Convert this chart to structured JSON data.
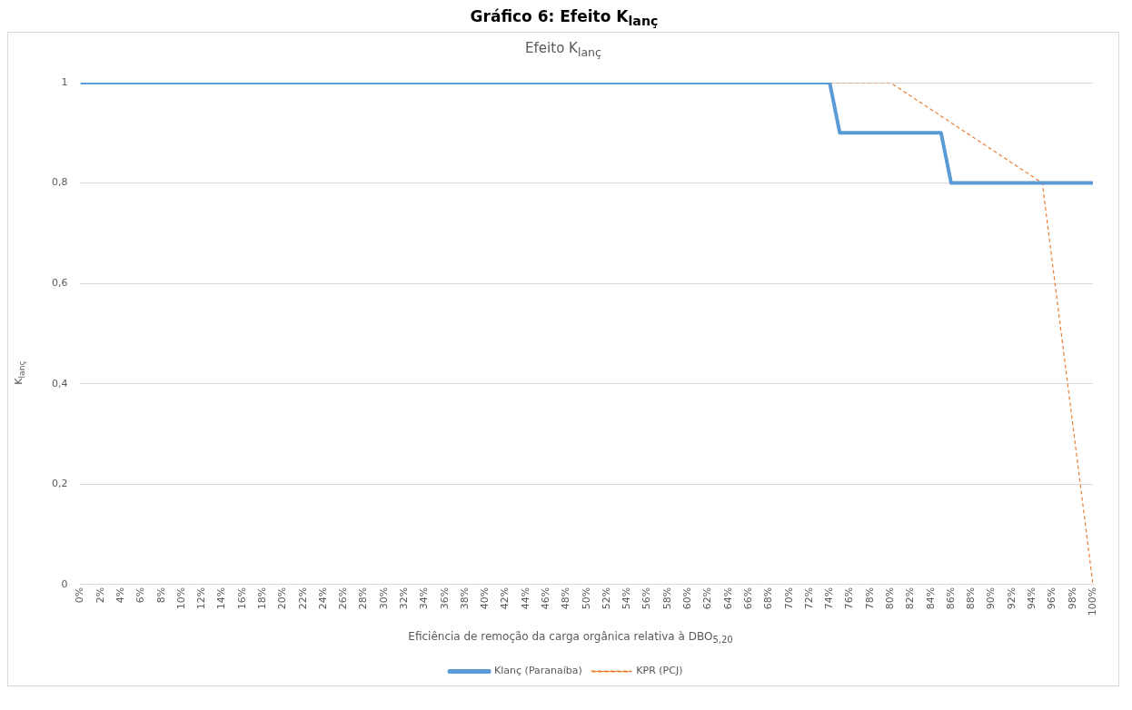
{
  "chart_data": {
    "type": "line",
    "title": "Gráfico 6: Efeito K$_{lanç}$",
    "subtitle": "Efeito K$_{lanç}$",
    "xlabel": "Eficiência de remoção da carga orgânica relativa à DBO$_{5,20}$",
    "ylabel": "K$_{lanç}$",
    "series": [
      {
        "name": "Klanç (Paranaíba)",
        "color": "#5b9bd5",
        "line_style": "solid",
        "x": [
          0,
          74,
          75,
          85,
          86,
          100
        ],
        "values": [
          1,
          1,
          0.9,
          0.9,
          0.8,
          0.8
        ]
      },
      {
        "name": "KPR (PCJ)",
        "color": "#ed7d31",
        "line_style": "dashed",
        "x": [
          74,
          80,
          95,
          100
        ],
        "values": [
          1,
          1,
          0.8,
          0
        ]
      }
    ],
    "xlim": [
      0,
      100
    ],
    "xticks": [
      {
        "value": 0,
        "label": "0%"
      },
      {
        "value": 2,
        "label": "2%"
      },
      {
        "value": 4,
        "label": "4%"
      },
      {
        "value": 6,
        "label": "6%"
      },
      {
        "value": 8,
        "label": "8%"
      },
      {
        "value": 10,
        "label": "10%"
      },
      {
        "value": 12,
        "label": "12%"
      },
      {
        "value": 14,
        "label": "14%"
      },
      {
        "value": 16,
        "label": "16%"
      },
      {
        "value": 18,
        "label": "18%"
      },
      {
        "value": 20,
        "label": "20%"
      },
      {
        "value": 22,
        "label": "22%"
      },
      {
        "value": 24,
        "label": "24%"
      },
      {
        "value": 26,
        "label": "26%"
      },
      {
        "value": 28,
        "label": "28%"
      },
      {
        "value": 30,
        "label": "30%"
      },
      {
        "value": 32,
        "label": "32%"
      },
      {
        "value": 34,
        "label": "34%"
      },
      {
        "value": 36,
        "label": "36%"
      },
      {
        "value": 38,
        "label": "38%"
      },
      {
        "value": 40,
        "label": "40%"
      },
      {
        "value": 42,
        "label": "42%"
      },
      {
        "value": 44,
        "label": "44%"
      },
      {
        "value": 46,
        "label": "46%"
      },
      {
        "value": 48,
        "label": "48%"
      },
      {
        "value": 50,
        "label": "50%"
      },
      {
        "value": 52,
        "label": "52%"
      },
      {
        "value": 54,
        "label": "54%"
      },
      {
        "value": 56,
        "label": "56%"
      },
      {
        "value": 58,
        "label": "58%"
      },
      {
        "value": 60,
        "label": "60%"
      },
      {
        "value": 62,
        "label": "62%"
      },
      {
        "value": 64,
        "label": "64%"
      },
      {
        "value": 66,
        "label": "66%"
      },
      {
        "value": 68,
        "label": "68%"
      },
      {
        "value": 70,
        "label": "70%"
      },
      {
        "value": 72,
        "label": "72%"
      },
      {
        "value": 74,
        "label": "74%"
      },
      {
        "value": 76,
        "label": "76%"
      },
      {
        "value": 78,
        "label": "78%"
      },
      {
        "value": 80,
        "label": "80%"
      },
      {
        "value": 82,
        "label": "82%"
      },
      {
        "value": 84,
        "label": "84%"
      },
      {
        "value": 86,
        "label": "86%"
      },
      {
        "value": 88,
        "label": "88%"
      },
      {
        "value": 90,
        "label": "90%"
      },
      {
        "value": 92,
        "label": "92%"
      },
      {
        "value": 94,
        "label": "94%"
      },
      {
        "value": 96,
        "label": "96%"
      },
      {
        "value": 98,
        "label": "98%"
      },
      {
        "value": 100,
        "label": "100%"
      }
    ],
    "ylim": [
      0,
      1
    ],
    "yticks": [
      0,
      {
        "value": 0.2,
        "label": "0,2"
      },
      {
        "value": 0.4,
        "label": "0,4"
      },
      {
        "value": 0.6,
        "label": "0,6"
      },
      {
        "value": 0.8,
        "label": "0,8"
      },
      1
    ],
    "grid": "y",
    "legend": "bottom",
    "marker": "none"
  }
}
